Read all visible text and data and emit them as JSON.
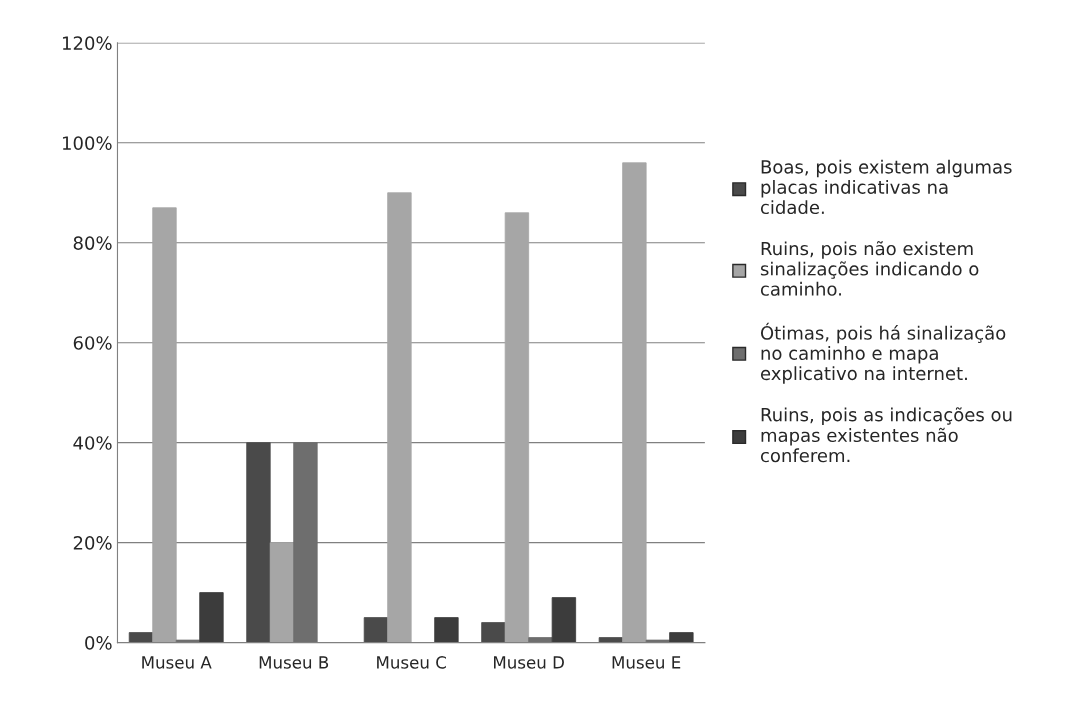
{
  "chart_data": {
    "type": "bar",
    "categories": [
      "Museu A",
      "Museu B",
      "Museu C",
      "Museu D",
      "Museu E"
    ],
    "series": [
      {
        "name": "Boas, pois existem algumas placas indicativas na cidade.",
        "color": "#4a4a4a",
        "values": [
          2,
          40,
          5,
          4,
          1
        ]
      },
      {
        "name": "Ruins, pois não existem sinalizações indicando o caminho.",
        "color": "#a6a6a6",
        "values": [
          87,
          20,
          90,
          86,
          96
        ]
      },
      {
        "name": "Ótimas, pois há sinalização no caminho e mapa explicativo na internet.",
        "color": "#6e6e6e",
        "values": [
          0.5,
          40,
          0,
          1,
          0.5
        ]
      },
      {
        "name": "Ruins, pois as indicações ou mapas existentes não conferem.",
        "color": "#3c3c3c",
        "values": [
          10,
          0,
          5,
          9,
          2
        ]
      }
    ],
    "ylim": [
      0,
      120
    ],
    "yticks": [
      {
        "value": 0,
        "label": "0%"
      },
      {
        "value": 20,
        "label": "20%"
      },
      {
        "value": 40,
        "label": "40%"
      },
      {
        "value": 60,
        "label": "60%"
      },
      {
        "value": 80,
        "label": "80%"
      },
      {
        "value": 100,
        "label": "100%"
      },
      {
        "value": 120,
        "label": "120%"
      }
    ],
    "grid": "y",
    "legend": "right"
  }
}
